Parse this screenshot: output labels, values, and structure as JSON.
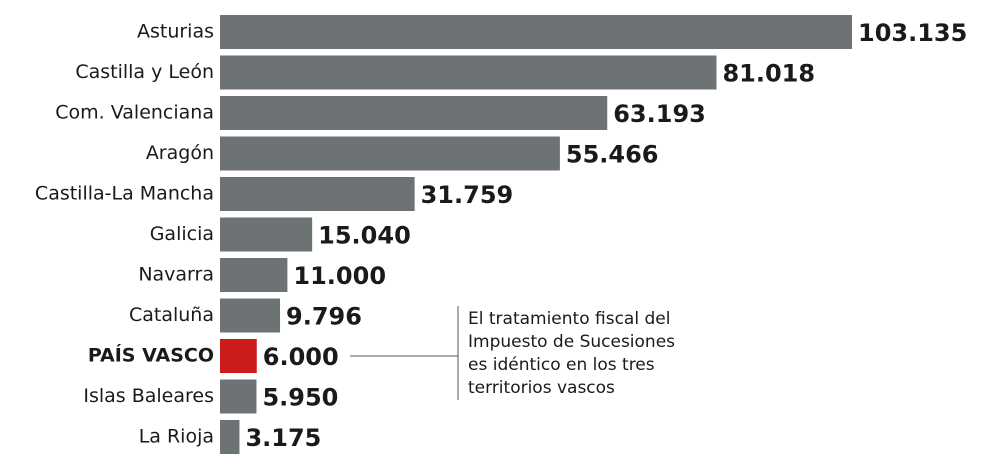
{
  "chart_data": {
    "type": "barh",
    "categories": [
      "Asturias",
      "Castilla y León",
      "Com. Valenciana",
      "Aragón",
      "Castilla-La Mancha",
      "Galicia",
      "Navarra",
      "Cataluña",
      "PAÍS VASCO",
      "Islas Baleares",
      "La Rioja"
    ],
    "values": [
      103135,
      81018,
      63193,
      55466,
      31759,
      15040,
      11000,
      9796,
      6000,
      5950,
      3175
    ],
    "value_labels": [
      "103.135",
      "81.018",
      "63.193",
      "55.466",
      "31.759",
      "15.040",
      "11.000",
      "9.796",
      "6.000",
      "5.950",
      "3.175"
    ],
    "colors": [
      "#6d7275",
      "#6d7275",
      "#6d7275",
      "#6d7275",
      "#6d7275",
      "#6d7275",
      "#6d7275",
      "#6d7275",
      "#cc1b1b",
      "#6d7275",
      "#6d7275"
    ],
    "annotation": {
      "target": 8,
      "lines": [
        "El tratamiento fiscal del",
        "Impuesto de Sucesiones",
        "es idéntico en los tres",
        "territorios vascos"
      ]
    }
  }
}
